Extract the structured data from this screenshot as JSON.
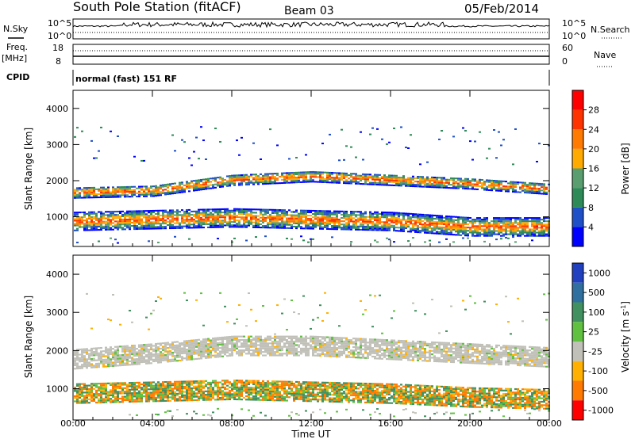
{
  "header": {
    "station": "South Pole Station (fitACF)",
    "beam": "Beam 03",
    "date": "05/Feb/2014"
  },
  "top_panels": {
    "nsky_label": "N.Sky",
    "nsearch_label": "N.Search",
    "nsky_ticks": [
      "10^5",
      "10^0"
    ],
    "nsearch_ticks": [
      "10^5",
      "10^0"
    ],
    "freq_label_1": "Freq.",
    "freq_label_2": "[MHz]",
    "freq_ticks": [
      "18",
      "8"
    ],
    "nave_label": "Nave",
    "nave_ticks": [
      "60",
      "0"
    ],
    "cpid_label": "CPID",
    "cpid_value": "normal (fast) 151 RF"
  },
  "colors": {
    "power_scale": [
      "#0000ff",
      "#1f50c8",
      "#2e8b57",
      "#5a9e6f",
      "#ffaa00",
      "#ff7a00",
      "#ff3300",
      "#ff0000"
    ],
    "velocity_scale": [
      "#2040c0",
      "#3070a0",
      "#409060",
      "#60c040",
      "#c0c0b8",
      "#ffb000",
      "#ff7a00",
      "#ff0000"
    ]
  },
  "chart_data": [
    {
      "type": "heatmap",
      "name": "power",
      "ylabel": "Slant Range [km]",
      "ylim": [
        180,
        4500
      ],
      "yticks": [
        1000,
        2000,
        3000,
        4000
      ],
      "colorbar_label": "Power [dB]",
      "colorbar_ticks": [
        4,
        8,
        12,
        16,
        20,
        24,
        28
      ],
      "colorbar_range": [
        0,
        32
      ],
      "x": [
        "00:00",
        "04:00",
        "08:00",
        "12:00",
        "16:00",
        "20:00",
        "00:00"
      ],
      "bands": [
        {
          "center": [
            1650,
            1700,
            2000,
            2100,
            2000,
            1900,
            1750
          ],
          "width": 300,
          "level": 18
        },
        {
          "center": [
            850,
            900,
            950,
            900,
            850,
            700,
            700
          ],
          "width": 500,
          "level": 22
        }
      ]
    },
    {
      "type": "heatmap",
      "name": "velocity",
      "ylabel": "Slant Range [km]",
      "ylim": [
        180,
        4500
      ],
      "yticks": [
        1000,
        2000,
        3000,
        4000
      ],
      "colorbar_label": "Velocity [m s-1]",
      "colorbar_ticks": [
        "1000",
        "500",
        "100",
        "25",
        "-25",
        "-100",
        "-500",
        "-1000"
      ],
      "x": [
        "00:00",
        "04:00",
        "08:00",
        "12:00",
        "16:00",
        "20:00",
        "00:00"
      ],
      "xlabel": "Time UT",
      "bands": [
        {
          "center": [
            1750,
            1900,
            2100,
            2100,
            2000,
            1900,
            1800
          ],
          "width": 500,
          "level": 0
        },
        {
          "center": [
            850,
            900,
            950,
            900,
            850,
            750,
            700
          ],
          "width": 500,
          "level": -200
        }
      ]
    }
  ]
}
